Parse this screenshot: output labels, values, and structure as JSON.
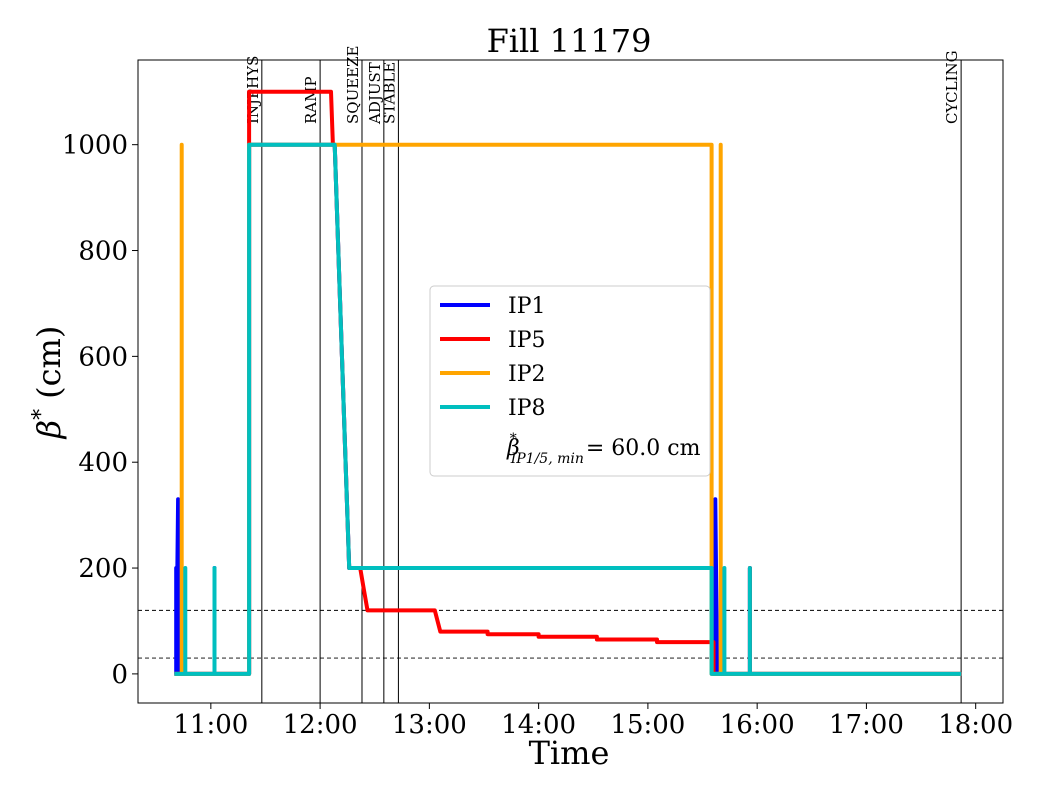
{
  "chart_data": {
    "type": "line",
    "title": "Fill 11179",
    "xlabel": "Time",
    "ylabel_symbol": "β",
    "ylabel_sup": "*",
    "ylabel_unit": "(cm)",
    "xlim": [
      "10:20",
      "18:15"
    ],
    "ylim": [
      -55,
      1160
    ],
    "xticks": [
      "11:00",
      "12:00",
      "13:00",
      "14:00",
      "15:00",
      "16:00",
      "17:00",
      "18:00"
    ],
    "yticks": [
      0,
      200,
      400,
      600,
      800,
      1000
    ],
    "grid": false,
    "legend_position": "center",
    "reference_lines": [
      30,
      120
    ],
    "phases": [
      {
        "label": "INJPHYS",
        "time": "11:28"
      },
      {
        "label": "RAMP",
        "time": "12:00"
      },
      {
        "label": "SQUEEZE",
        "time": "12:23"
      },
      {
        "label": "ADJUST",
        "time": "12:35"
      },
      {
        "label": "STABLE",
        "time": "12:43"
      },
      {
        "label": "CYCLING",
        "time": "17:52"
      }
    ],
    "series": [
      {
        "name": "IP1",
        "color": "#0000ff",
        "points": [
          [
            "10:40",
            0
          ],
          [
            "10:41",
            0
          ],
          [
            "10:41",
            200
          ],
          [
            "10:41",
            0
          ],
          [
            "10:42",
            330
          ],
          [
            "10:42",
            0
          ],
          [
            "11:02",
            0
          ],
          [
            "11:02",
            200
          ],
          [
            "11:02",
            0
          ],
          [
            "11:21",
            0
          ],
          [
            "11:21",
            1000
          ],
          [
            "12:08",
            1000
          ],
          [
            "12:16",
            200
          ],
          [
            "15:36",
            200
          ],
          [
            "15:36",
            0
          ],
          [
            "15:37",
            0
          ],
          [
            "15:37",
            330
          ],
          [
            "15:38",
            0
          ],
          [
            "15:56",
            0
          ],
          [
            "15:56",
            200
          ],
          [
            "15:56",
            0
          ],
          [
            "17:52",
            0
          ]
        ]
      },
      {
        "name": "IP5",
        "color": "#ff0000",
        "points": [
          [
            "10:40",
            0
          ],
          [
            "11:21",
            0
          ],
          [
            "11:21",
            1100
          ],
          [
            "12:06",
            1100
          ],
          [
            "12:07",
            1000
          ],
          [
            "12:08",
            1000
          ],
          [
            "12:16",
            200
          ],
          [
            "12:22",
            200
          ],
          [
            "12:24",
            160
          ],
          [
            "12:26",
            120
          ],
          [
            "13:03",
            120
          ],
          [
            "13:06",
            80
          ],
          [
            "13:32",
            80
          ],
          [
            "13:32",
            75
          ],
          [
            "14:00",
            75
          ],
          [
            "14:00",
            70
          ],
          [
            "14:32",
            70
          ],
          [
            "14:32",
            65
          ],
          [
            "15:05",
            65
          ],
          [
            "15:05",
            60
          ],
          [
            "15:36",
            60
          ],
          [
            "15:36",
            0
          ],
          [
            "15:56",
            0
          ],
          [
            "15:56",
            200
          ],
          [
            "15:56",
            0
          ],
          [
            "17:52",
            0
          ]
        ]
      },
      {
        "name": "IP2",
        "color": "#ffa500",
        "points": [
          [
            "10:40",
            0
          ],
          [
            "10:44",
            0
          ],
          [
            "10:44",
            1000
          ],
          [
            "10:44",
            0
          ],
          [
            "11:21",
            0
          ],
          [
            "11:21",
            1000
          ],
          [
            "15:35",
            1000
          ],
          [
            "15:35",
            0
          ],
          [
            "15:40",
            0
          ],
          [
            "15:40",
            1000
          ],
          [
            "15:40",
            0
          ],
          [
            "17:52",
            0
          ]
        ]
      },
      {
        "name": "IP8",
        "color": "#00bfbf",
        "points": [
          [
            "10:40",
            0
          ],
          [
            "10:46",
            0
          ],
          [
            "10:46",
            200
          ],
          [
            "10:46",
            0
          ],
          [
            "11:02",
            0
          ],
          [
            "11:02",
            200
          ],
          [
            "11:02",
            0
          ],
          [
            "11:21",
            0
          ],
          [
            "11:21",
            1000
          ],
          [
            "12:08",
            1000
          ],
          [
            "12:16",
            200
          ],
          [
            "15:35",
            200
          ],
          [
            "15:35",
            0
          ],
          [
            "15:42",
            0
          ],
          [
            "15:42",
            200
          ],
          [
            "15:42",
            0
          ],
          [
            "15:56",
            0
          ],
          [
            "15:56",
            200
          ],
          [
            "15:56",
            0
          ],
          [
            "17:52",
            0
          ]
        ]
      }
    ],
    "annotation": {
      "symbol": "β",
      "sup": "*",
      "sub": "IP1/5, min",
      "value": "= 60.0 cm"
    }
  }
}
